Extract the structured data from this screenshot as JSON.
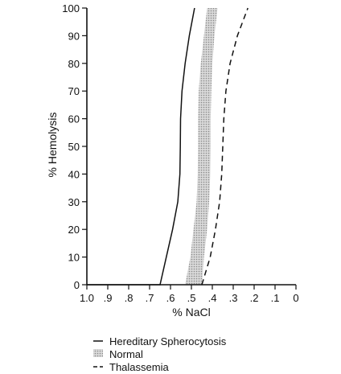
{
  "chart_data": {
    "type": "line",
    "title": "",
    "xlabel": "% NaCl",
    "ylabel": "% Hemolysis",
    "xlim": [
      1.0,
      0
    ],
    "x_reversed": true,
    "ylim": [
      0,
      100
    ],
    "grid": false,
    "legend_position": "bottom",
    "x_tick_labels": [
      "1.0",
      ".9",
      ".8",
      ".7",
      ".6",
      ".5",
      ".4",
      ".3",
      ".2",
      ".1",
      "0"
    ],
    "x_ticks": [
      1.0,
      0.9,
      0.8,
      0.7,
      0.6,
      0.5,
      0.4,
      0.3,
      0.2,
      0.1,
      0.0
    ],
    "y_tick_labels": [
      "0",
      "10",
      "20",
      "30",
      "40",
      "50",
      "60",
      "70",
      "80",
      "90",
      "100"
    ],
    "y_ticks": [
      0,
      10,
      20,
      30,
      40,
      50,
      60,
      70,
      80,
      90,
      100
    ],
    "series": [
      {
        "name": "Hereditary Spherocytosis",
        "style": "solid",
        "points": [
          [
            1.0,
            0
          ],
          [
            0.65,
            0
          ],
          [
            0.62,
            10
          ],
          [
            0.59,
            20
          ],
          [
            0.565,
            30
          ],
          [
            0.555,
            40
          ],
          [
            0.553,
            50
          ],
          [
            0.552,
            60
          ],
          [
            0.545,
            70
          ],
          [
            0.53,
            80
          ],
          [
            0.51,
            90
          ],
          [
            0.485,
            100
          ]
        ]
      },
      {
        "name": "Normal",
        "style": "shaded-band",
        "lower": [
          [
            0.45,
            0
          ],
          [
            0.44,
            10
          ],
          [
            0.425,
            20
          ],
          [
            0.415,
            30
          ],
          [
            0.41,
            40
          ],
          [
            0.408,
            50
          ],
          [
            0.408,
            60
          ],
          [
            0.405,
            70
          ],
          [
            0.4,
            80
          ],
          [
            0.39,
            90
          ],
          [
            0.375,
            100
          ]
        ],
        "upper": [
          [
            0.53,
            0
          ],
          [
            0.505,
            10
          ],
          [
            0.49,
            20
          ],
          [
            0.475,
            30
          ],
          [
            0.47,
            40
          ],
          [
            0.468,
            50
          ],
          [
            0.468,
            60
          ],
          [
            0.465,
            70
          ],
          [
            0.455,
            80
          ],
          [
            0.44,
            90
          ],
          [
            0.425,
            100
          ]
        ]
      },
      {
        "name": "Thalassemia",
        "style": "dashed",
        "points": [
          [
            0.45,
            0
          ],
          [
            0.41,
            10
          ],
          [
            0.385,
            20
          ],
          [
            0.365,
            30
          ],
          [
            0.355,
            40
          ],
          [
            0.35,
            50
          ],
          [
            0.345,
            60
          ],
          [
            0.335,
            70
          ],
          [
            0.315,
            80
          ],
          [
            0.28,
            90
          ],
          [
            0.23,
            100
          ]
        ]
      }
    ]
  }
}
